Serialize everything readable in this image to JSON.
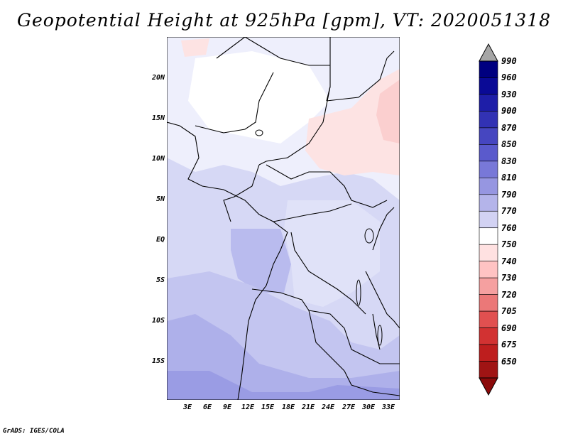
{
  "title": "Geopotential Height at 925hPa [gpm], VT: 2020051318",
  "credit": "GrADS: IGES/COLA",
  "map": {
    "lat_labels": [
      "20N",
      "15N",
      "10N",
      "5N",
      "EQ",
      "5S",
      "10S",
      "15S"
    ],
    "lon_labels": [
      "3E",
      "6E",
      "9E",
      "12E",
      "15E",
      "18E",
      "21E",
      "24E",
      "27E",
      "30E",
      "33E"
    ]
  },
  "colorbar": {
    "levels": [
      "990",
      "960",
      "930",
      "900",
      "870",
      "850",
      "830",
      "810",
      "790",
      "770",
      "760",
      "750",
      "740",
      "730",
      "720",
      "705",
      "690",
      "675",
      "650"
    ],
    "colors": [
      "#000080",
      "#0a0a96",
      "#1e1ea8",
      "#3232b4",
      "#4646c0",
      "#5a5acc",
      "#7878d8",
      "#9696e1",
      "#b4b4ea",
      "#d2d2f3",
      "#ffffff",
      "#ffe1e1",
      "#ffc3c3",
      "#f5a0a0",
      "#eb7878",
      "#e15050",
      "#d23232",
      "#be1e1e",
      "#a01414"
    ]
  }
}
